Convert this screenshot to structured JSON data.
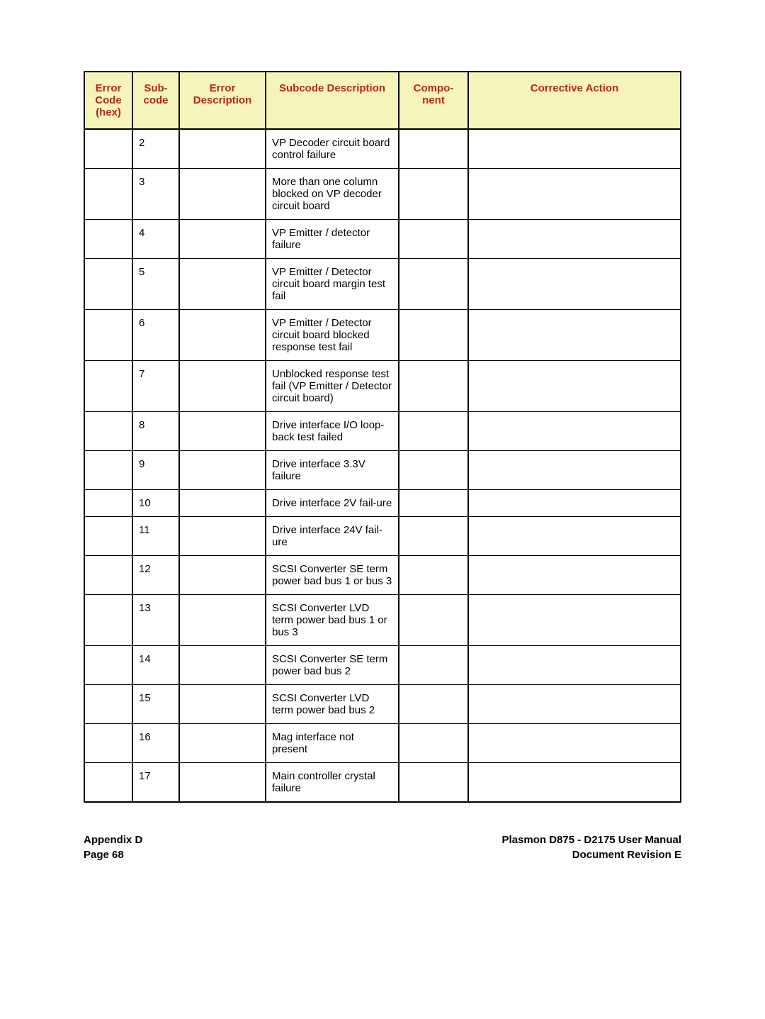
{
  "table": {
    "header_bg": "#f5f5bb",
    "header_color": "#c42020",
    "border_color": "#000000",
    "font_size": 15,
    "columns": [
      {
        "key": "error_code",
        "label": "Error Code (hex)"
      },
      {
        "key": "subcode",
        "label": "Sub-code"
      },
      {
        "key": "err_desc",
        "label": "Error Description"
      },
      {
        "key": "sub_desc",
        "label": "Subcode Description"
      },
      {
        "key": "component",
        "label": "Compo-nent"
      },
      {
        "key": "action",
        "label": "Corrective Action"
      }
    ],
    "rows": [
      {
        "error_code": "",
        "subcode": "2",
        "err_desc": "",
        "sub_desc": "VP Decoder circuit board control failure",
        "component": "",
        "action": ""
      },
      {
        "error_code": "",
        "subcode": "3",
        "err_desc": "",
        "sub_desc": "More than one column blocked on VP decoder circuit board",
        "component": "",
        "action": ""
      },
      {
        "error_code": "",
        "subcode": "4",
        "err_desc": "",
        "sub_desc": "VP Emitter / detector failure",
        "component": "",
        "action": ""
      },
      {
        "error_code": "",
        "subcode": "5",
        "err_desc": "",
        "sub_desc": "VP Emitter / Detector circuit board margin test fail",
        "component": "",
        "action": ""
      },
      {
        "error_code": "",
        "subcode": "6",
        "err_desc": "",
        "sub_desc": "VP Emitter / Detector circuit board blocked response test fail",
        "component": "",
        "action": ""
      },
      {
        "error_code": "",
        "subcode": "7",
        "err_desc": "",
        "sub_desc": "Unblocked response test fail (VP Emitter / Detector circuit board)",
        "component": "",
        "action": ""
      },
      {
        "error_code": "",
        "subcode": "8",
        "err_desc": "",
        "sub_desc": "Drive interface I/O loop-back test failed",
        "component": "",
        "action": ""
      },
      {
        "error_code": "",
        "subcode": "9",
        "err_desc": "",
        "sub_desc": "Drive interface 3.3V failure",
        "component": "",
        "action": ""
      },
      {
        "error_code": "",
        "subcode": "10",
        "err_desc": "",
        "sub_desc": "Drive interface 2V fail-ure",
        "component": "",
        "action": ""
      },
      {
        "error_code": "",
        "subcode": "11",
        "err_desc": "",
        "sub_desc": "Drive interface 24V fail-ure",
        "component": "",
        "action": ""
      },
      {
        "error_code": "",
        "subcode": "12",
        "err_desc": "",
        "sub_desc": "SCSI Converter SE term power bad bus 1 or bus 3",
        "component": "",
        "action": ""
      },
      {
        "error_code": "",
        "subcode": "13",
        "err_desc": "",
        "sub_desc": "SCSI Converter LVD term power bad bus 1 or bus 3",
        "component": "",
        "action": ""
      },
      {
        "error_code": "",
        "subcode": "14",
        "err_desc": "",
        "sub_desc": "SCSI Converter SE term power bad bus 2",
        "component": "",
        "action": ""
      },
      {
        "error_code": "",
        "subcode": "15",
        "err_desc": "",
        "sub_desc": "SCSI Converter LVD term power bad bus 2",
        "component": "",
        "action": ""
      },
      {
        "error_code": "",
        "subcode": "16",
        "err_desc": "",
        "sub_desc": "Mag interface not present",
        "component": "",
        "action": ""
      },
      {
        "error_code": "",
        "subcode": "17",
        "err_desc": "",
        "sub_desc": "Main controller crystal failure",
        "component": "",
        "action": ""
      }
    ]
  },
  "footer": {
    "left_line1": "Appendix D",
    "left_line2": "Page 68",
    "right_line1": "Plasmon D875 - D2175 User Manual",
    "right_line2": "Document Revision E"
  }
}
